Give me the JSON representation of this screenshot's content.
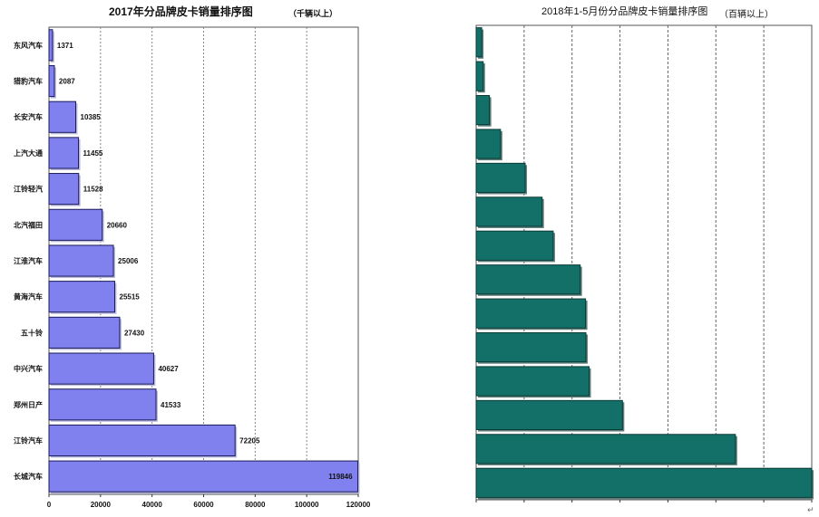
{
  "chart_data": [
    {
      "type": "bar",
      "orientation": "horizontal",
      "title": "2017年分品牌皮卡销量排序图",
      "subtitle": "（千辆以上）",
      "categories": [
        "东风汽车",
        "猎豹汽车",
        "长安汽车",
        "上汽大通",
        "江铃轻汽",
        "北汽福田",
        "江淮汽车",
        "黄海汽车",
        "五十铃",
        "中兴汽车",
        "郑州日产",
        "江铃汽车",
        "长城汽车"
      ],
      "values": [
        1371,
        2087,
        10385,
        11455,
        11528,
        20660,
        25006,
        25515,
        27430,
        40627,
        41533,
        72205,
        119846
      ],
      "value_labels": [
        "1371",
        "2087",
        "10385",
        "11455",
        "11528",
        "20660",
        "25006",
        "25515",
        "27430",
        "40627",
        "41533",
        "72205",
        "119846"
      ],
      "xlim": [
        0,
        120000
      ],
      "x_ticks": [
        "0",
        "20000",
        "40000",
        "60000",
        "80000",
        "100000",
        "120000"
      ],
      "grid": true,
      "colors": {
        "bar": "#8080ee",
        "bar_edge": "#1a1a5a"
      }
    },
    {
      "type": "bar",
      "orientation": "horizontal",
      "title": "2018年1-5月份分品牌皮卡销量排序图",
      "subtitle": "（百辆以上）",
      "categories": [
        "",
        "",
        "",
        "",
        "",
        "",
        "",
        "",
        "",
        "",
        "",
        "",
        "",
        ""
      ],
      "values": [
        330,
        420,
        790,
        1450,
        2920,
        3930,
        4590,
        6200,
        6520,
        6540,
        6730,
        8720,
        15450,
        20000
      ],
      "value_labels": [
        "",
        "",
        "",
        "",
        "",
        "",
        "",
        "",
        "",
        "",
        "",
        "",
        "",
        ""
      ],
      "xlim": [
        0,
        20000
      ],
      "x_ticks": [
        "",
        "",
        "",
        "",
        "",
        "",
        "",
        ""
      ],
      "grid": true,
      "colors": {
        "bar": "#127068",
        "bar_edge": "#0a3a36"
      }
    }
  ],
  "misc": {
    "return_symbol": "↵"
  }
}
